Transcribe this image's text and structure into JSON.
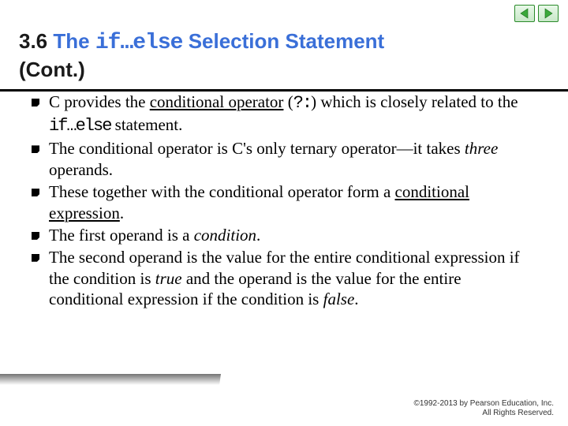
{
  "nav": {
    "prev_icon": "triangle-left",
    "next_icon": "triangle-right",
    "colors": {
      "border": "#2a8a2a",
      "fill": "#3aa83a"
    }
  },
  "title": {
    "section_number": "3.6",
    "prefix": "The ",
    "code": "if…else",
    "suffix": " Selection Statement",
    "cont": "(Cont.)"
  },
  "bullets": [
    {
      "segments": [
        {
          "t": "C provides the "
        },
        {
          "t": "conditional operator",
          "cls": "ul"
        },
        {
          "t": " ("
        },
        {
          "t": "?:",
          "cls": "mono"
        },
        {
          "t": ") which is closely related to the "
        },
        {
          "t": "if…else",
          "cls": "mono"
        },
        {
          "t": " statement."
        }
      ]
    },
    {
      "segments": [
        {
          "t": "The conditional operator is C's only ternary operator—it takes "
        },
        {
          "t": "three",
          "cls": "ital"
        },
        {
          "t": " operands."
        }
      ]
    },
    {
      "segments": [
        {
          "t": "These together with the conditional operator form a "
        },
        {
          "t": "conditional expression",
          "cls": "ul"
        },
        {
          "t": "."
        }
      ]
    },
    {
      "segments": [
        {
          "t": "The first operand is a "
        },
        {
          "t": "condition",
          "cls": "ital"
        },
        {
          "t": "."
        }
      ]
    },
    {
      "segments": [
        {
          "t": "The second operand is the value for the entire conditional expression if the condition is "
        },
        {
          "t": "true",
          "cls": "ital"
        },
        {
          "t": " and the operand is the value for the entire conditional expression if the condition is "
        },
        {
          "t": "false",
          "cls": "ital"
        },
        {
          "t": "."
        }
      ]
    }
  ],
  "footer": {
    "line1": "©1992-2013 by Pearson Education, Inc.",
    "line2": "All Rights Reserved."
  }
}
